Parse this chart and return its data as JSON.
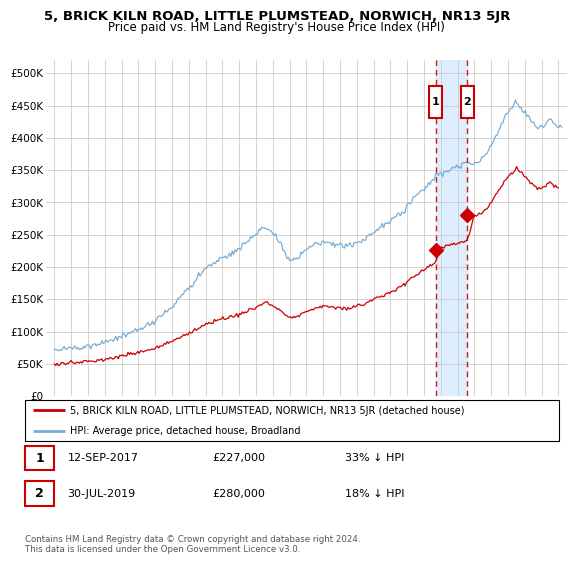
{
  "title": "5, BRICK KILN ROAD, LITTLE PLUMSTEAD, NORWICH, NR13 5JR",
  "subtitle": "Price paid vs. HM Land Registry's House Price Index (HPI)",
  "ylabel_ticks": [
    "£0",
    "£50K",
    "£100K",
    "£150K",
    "£200K",
    "£250K",
    "£300K",
    "£350K",
    "£400K",
    "£450K",
    "£500K"
  ],
  "ytick_values": [
    0,
    50000,
    100000,
    150000,
    200000,
    250000,
    300000,
    350000,
    400000,
    450000,
    500000
  ],
  "ylim": [
    0,
    520000
  ],
  "xlim_start": 1994.5,
  "xlim_end": 2025.5,
  "sale1_x": 2017.7,
  "sale1_y": 227000,
  "sale2_x": 2019.58,
  "sale2_y": 280000,
  "annotation1_label": "1",
  "annotation1_date": "12-SEP-2017",
  "annotation1_price": "£227,000",
  "annotation1_note": "33% ↓ HPI",
  "annotation2_label": "2",
  "annotation2_date": "30-JUL-2019",
  "annotation2_price": "£280,000",
  "annotation2_note": "18% ↓ HPI",
  "legend_entry1": "5, BRICK KILN ROAD, LITTLE PLUMSTEAD, NORWICH, NR13 5JR (detached house)",
  "legend_entry2": "HPI: Average price, detached house, Broadland",
  "footer": "Contains HM Land Registry data © Crown copyright and database right 2024.\nThis data is licensed under the Open Government Licence v3.0.",
  "line_color_property": "#cc0000",
  "line_color_hpi": "#7aaed6",
  "shade_color": "#ddeeff",
  "background_color": "#ffffff",
  "grid_color": "#cccccc",
  "annotation_box_color": "#cc0000",
  "dashed_line_color": "#cc0000"
}
